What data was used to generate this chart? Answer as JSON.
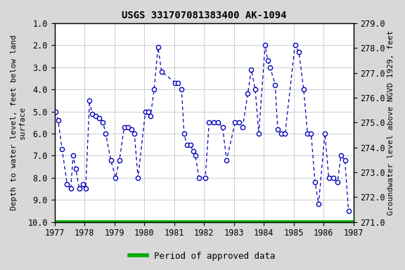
{
  "title": "USGS 331707081383400 AK-1094",
  "ylabel_left": "Depth to water level, feet below land\nsurface",
  "ylabel_right": "Groundwater level above NGVD 1929, feet",
  "ylim_left": [
    1.0,
    10.0
  ],
  "ylim_right_top": 279.0,
  "ylim_right_bottom": 271.0,
  "xlim": [
    1977.0,
    1987.0
  ],
  "xticks": [
    1977,
    1978,
    1979,
    1980,
    1981,
    1982,
    1983,
    1984,
    1985,
    1986,
    1987
  ],
  "yticks_left": [
    1.0,
    2.0,
    3.0,
    4.0,
    5.0,
    6.0,
    7.0,
    8.0,
    9.0,
    10.0
  ],
  "yticks_right": [
    279.0,
    278.0,
    277.0,
    276.0,
    275.0,
    274.0,
    273.0,
    272.0,
    271.0
  ],
  "line_color": "#0000BB",
  "marker_facecolor": "#ffffff",
  "marker_edgecolor": "#0000BB",
  "background_color": "#d8d8d8",
  "plot_bg_color": "#ffffff",
  "legend_label": "Period of approved data",
  "legend_color": "#00aa00",
  "green_bar_y": 10.0,
  "data_x": [
    1977.04,
    1977.12,
    1977.25,
    1977.42,
    1977.54,
    1977.62,
    1977.71,
    1977.83,
    1977.96,
    1978.04,
    1978.17,
    1978.25,
    1978.38,
    1978.5,
    1978.62,
    1978.71,
    1978.88,
    1979.04,
    1979.17,
    1979.33,
    1979.46,
    1979.58,
    1979.67,
    1979.79,
    1980.04,
    1980.13,
    1980.21,
    1980.33,
    1980.46,
    1980.58,
    1981.04,
    1981.13,
    1981.25,
    1981.33,
    1981.42,
    1981.54,
    1981.63,
    1981.71,
    1981.83,
    1982.04,
    1982.17,
    1982.33,
    1982.46,
    1982.62,
    1982.75,
    1983.04,
    1983.17,
    1983.29,
    1983.46,
    1983.58,
    1983.71,
    1983.83,
    1984.04,
    1984.13,
    1984.21,
    1984.38,
    1984.46,
    1984.58,
    1984.71,
    1985.04,
    1985.17,
    1985.33,
    1985.46,
    1985.58,
    1985.71,
    1985.83,
    1986.04,
    1986.17,
    1986.33,
    1986.46,
    1986.58,
    1986.71,
    1986.83
  ],
  "data_y": [
    5.0,
    5.4,
    6.7,
    8.3,
    8.5,
    7.0,
    7.6,
    8.5,
    8.3,
    8.5,
    4.5,
    5.1,
    5.2,
    5.3,
    5.5,
    6.0,
    7.2,
    8.0,
    7.2,
    5.7,
    5.7,
    5.8,
    6.0,
    8.0,
    5.0,
    5.0,
    5.2,
    4.0,
    2.1,
    3.2,
    3.7,
    3.7,
    4.0,
    6.0,
    6.5,
    6.5,
    6.8,
    7.0,
    8.0,
    8.0,
    5.5,
    5.5,
    5.5,
    5.7,
    7.2,
    5.5,
    5.5,
    5.7,
    4.2,
    3.1,
    4.0,
    6.0,
    2.0,
    2.7,
    3.0,
    3.8,
    5.8,
    6.0,
    6.0,
    2.0,
    2.3,
    4.0,
    6.0,
    6.0,
    8.2,
    9.2,
    6.0,
    8.0,
    8.0,
    8.2,
    7.0,
    7.2,
    9.5
  ],
  "title_fontsize": 10,
  "axis_label_fontsize": 8,
  "tick_fontsize": 8.5
}
